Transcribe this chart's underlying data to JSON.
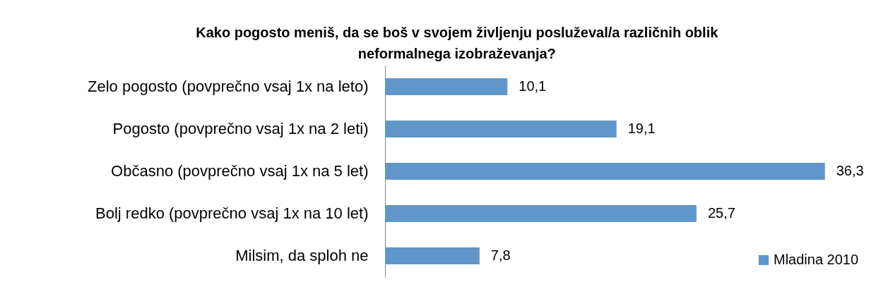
{
  "chart_data": {
    "type": "bar",
    "orientation": "horizontal",
    "title": "Kako pogosto meniš, da se boš v svojem življenju posluževal/a različnih oblik neformalnega izobraževanja?",
    "categories": [
      "Zelo pogosto (povprečno vsaj 1x na leto)",
      "Pogosto (povprečno vsaj 1x na 2 leti)",
      "Občasno (povprečno vsaj 1x na 5 let)",
      "Bolj redko (povprečno vsaj 1x na 10 let)",
      "Milsim, da sploh ne"
    ],
    "series": [
      {
        "name": "Mladina 2010",
        "color": "#6096c9",
        "values": [
          10.1,
          19.1,
          36.3,
          25.7,
          7.8
        ],
        "value_labels": [
          "10,1",
          "19,1",
          "36,3",
          "25,7",
          "7,8"
        ]
      }
    ],
    "legend": "bottom right",
    "tick_labels": "y"
  }
}
